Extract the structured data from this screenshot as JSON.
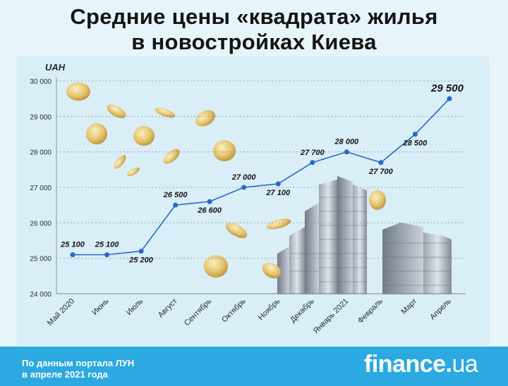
{
  "title_line1": "Средние цены «квадрата» жилья",
  "title_line2": "в новостройках Киева",
  "source_line1": "По данным портала ЛУН",
  "source_line2": "в апреле 2021 года",
  "logo": {
    "main": "finance",
    "sep": ".",
    "tld": "ua"
  },
  "colors": {
    "line": "#2a68c8",
    "background": "#e7f5fa",
    "panel": "#d9eef6",
    "footer": "#2ba9e0",
    "grid": "#8a97a0"
  },
  "chart_data": {
    "type": "line",
    "ylabel": "UAH",
    "ylim": [
      24000,
      30000
    ],
    "yticks": [
      24000,
      25000,
      26000,
      27000,
      28000,
      29000,
      30000
    ],
    "ytick_labels": [
      "24 000",
      "25 000",
      "26 000",
      "27 000",
      "28 000",
      "29 000",
      "30 000"
    ],
    "grid": "horizontal dashed",
    "categories": [
      "Май 2020",
      "Июнь",
      "Июль",
      "Август",
      "Сентябрь",
      "Октябрь",
      "Ноябрь",
      "Декабрь",
      "Январь 2021",
      "Февраль",
      "Март",
      "Апрель"
    ],
    "values": [
      25100,
      25100,
      25200,
      26500,
      26600,
      27000,
      27100,
      27700,
      28000,
      27700,
      28500,
      29500
    ],
    "data_labels": [
      "25 100",
      "25 100",
      "25 200",
      "26 500",
      "26 600",
      "27 000",
      "27 100",
      "27 700",
      "28 000",
      "27 700",
      "28 500",
      "29 500"
    ],
    "label_positions": [
      "above",
      "above",
      "below",
      "above",
      "below",
      "above",
      "below",
      "above",
      "above",
      "below",
      "below",
      "above"
    ]
  }
}
